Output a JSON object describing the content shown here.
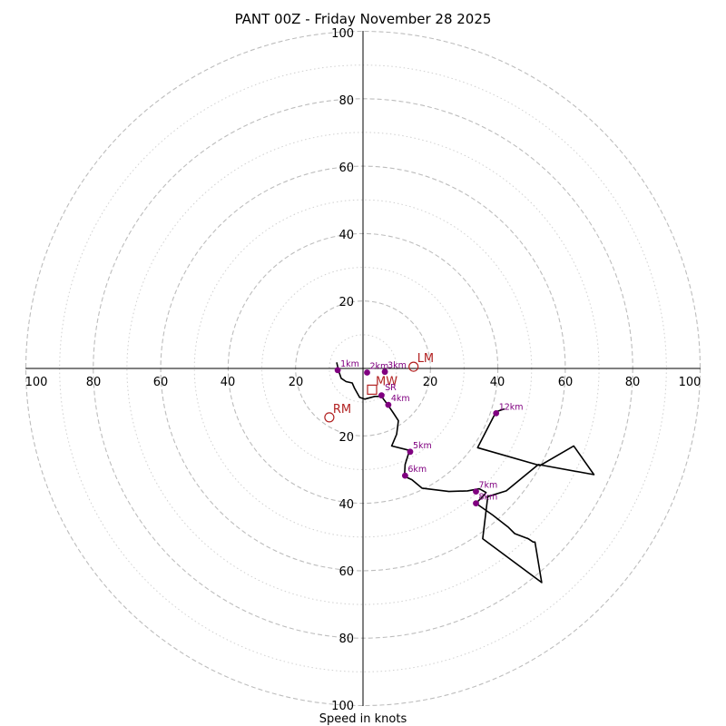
{
  "chart_data": {
    "type": "hodograph",
    "title": "PANT 00Z - Friday November 28 2025",
    "xlabel": "Speed in knots",
    "max_speed": 100,
    "ring_major_step": 20,
    "ring_minor_step": 10,
    "tick_labels": {
      "x_left": [
        "100",
        "80",
        "60",
        "40",
        "20"
      ],
      "x_right": [
        "20",
        "40",
        "60",
        "80",
        "100"
      ],
      "y_top": [
        "100",
        "80",
        "60",
        "40",
        "20"
      ],
      "y_bottom": [
        "20",
        "40",
        "60",
        "80",
        "100"
      ]
    },
    "trace": [
      [
        -7.8,
        1.8
      ],
      [
        -7.2,
        -0.8
      ],
      [
        -6.5,
        -2.9
      ],
      [
        -5.0,
        -3.9
      ],
      [
        -3.2,
        -4.3
      ],
      [
        -2.5,
        -5.9
      ],
      [
        -1.0,
        -8.6
      ],
      [
        0.5,
        -9.1
      ],
      [
        3.5,
        -8.3
      ],
      [
        5.5,
        -8.3
      ],
      [
        7.5,
        -11.0
      ],
      [
        9.0,
        -13.2
      ],
      [
        10.5,
        -15.5
      ],
      [
        10.0,
        -19.5
      ],
      [
        8.5,
        -23.0
      ],
      [
        13.8,
        -24.3
      ],
      [
        12.5,
        -28.5
      ],
      [
        12.3,
        -32.0
      ],
      [
        14.5,
        -33.0
      ],
      [
        17.5,
        -35.5
      ],
      [
        25.5,
        -36.5
      ],
      [
        31.0,
        -36.3
      ],
      [
        34.5,
        -35.7
      ],
      [
        36.5,
        -36.8
      ],
      [
        35.5,
        -38.0
      ],
      [
        33.5,
        -40.0
      ],
      [
        38.5,
        -43.5
      ],
      [
        43.0,
        -47.0
      ],
      [
        45.0,
        -49.0
      ],
      [
        49.0,
        -50.5
      ],
      [
        50.5,
        -51.5
      ],
      [
        51.0,
        -51.5
      ],
      [
        53.0,
        -63.5
      ],
      [
        35.5,
        -50.5
      ],
      [
        37.0,
        -38.0
      ],
      [
        42.5,
        -36.3
      ],
      [
        52.0,
        -28.5
      ],
      [
        68.5,
        -31.5
      ],
      [
        62.5,
        -23.0
      ],
      [
        52.5,
        -28.8
      ],
      [
        34.0,
        -23.5
      ],
      [
        39.5,
        -12.8
      ],
      [
        42.0,
        -12.0
      ]
    ],
    "height_markers": [
      {
        "label": "1km",
        "u": -7.5,
        "v": -0.5
      },
      {
        "label": "2km",
        "u": 1.2,
        "v": -1.2
      },
      {
        "label": "3km",
        "u": 6.5,
        "v": -1.0
      },
      {
        "label": "4km",
        "u": 7.5,
        "v": -10.8
      },
      {
        "label": "5km",
        "u": 14.0,
        "v": -24.7
      },
      {
        "label": "6km",
        "u": 12.5,
        "v": -31.8
      },
      {
        "label": "7km",
        "u": 33.5,
        "v": -36.5
      },
      {
        "label": "8km",
        "u": 33.5,
        "v": -40.0
      },
      {
        "label": "12km",
        "u": 39.5,
        "v": -13.3
      }
    ],
    "extra_marker": {
      "u": 5.5,
      "v": -8.0
    },
    "storm_motion": [
      {
        "label": "LM",
        "u": 15.0,
        "v": 0.5,
        "shape": "circle"
      },
      {
        "label": "RM",
        "u": -10.0,
        "v": -14.5,
        "shape": "circle"
      },
      {
        "label": "MW",
        "u": 2.7,
        "v": -6.3,
        "shape": "square"
      }
    ],
    "srh_label": {
      "text": "SR",
      "u": 6.5,
      "v": -6.5
    }
  }
}
